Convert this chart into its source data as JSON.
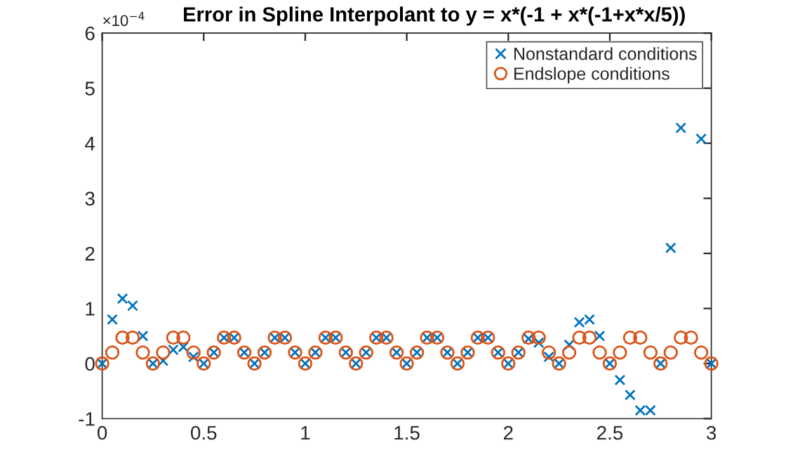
{
  "chart_data": {
    "type": "scatter",
    "title": "Error in Spline Interpolant to y = x*(-1 + x*(-1+x*x/5))",
    "annotations": [
      "×10$^{−4}$"
    ],
    "x": [
      0,
      0.05,
      0.1,
      0.15,
      0.2,
      0.25,
      0.3,
      0.35,
      0.4,
      0.45,
      0.5,
      0.55,
      0.6,
      0.65,
      0.7,
      0.75,
      0.8,
      0.85,
      0.9,
      0.95,
      1,
      1.05,
      1.1,
      1.15,
      1.2,
      1.25,
      1.3,
      1.35,
      1.4,
      1.45,
      1.5,
      1.55,
      1.6,
      1.65,
      1.7,
      1.75,
      1.8,
      1.85,
      1.9,
      1.95,
      2,
      2.05,
      2.1,
      2.15,
      2.2,
      2.25,
      2.3,
      2.35,
      2.4,
      2.45,
      2.5,
      2.55,
      2.6,
      2.65,
      2.7,
      2.75,
      2.8,
      2.85,
      2.9,
      2.95,
      3
    ],
    "series": [
      {
        "name": "Nonstandard conditions",
        "color": "#0072bd",
        "marker": "cross",
        "values": [
          0,
          0.8,
          1.18,
          1.05,
          0.5,
          0,
          0.05,
          0.25,
          0.3,
          0.12,
          0,
          0.2,
          0.47,
          0.47,
          0.2,
          0,
          0.2,
          0.47,
          0.47,
          0.2,
          0,
          0.2,
          0.47,
          0.47,
          0.2,
          0,
          0.2,
          0.47,
          0.47,
          0.2,
          0,
          0.2,
          0.47,
          0.47,
          0.2,
          0,
          0.2,
          0.47,
          0.47,
          0.2,
          0,
          0.2,
          0.45,
          0.38,
          0.12,
          0,
          0.34,
          0.75,
          0.8,
          0.5,
          0,
          -0.3,
          -0.57,
          -0.85,
          -0.85,
          0,
          2.1,
          4.28,
          null,
          4.08,
          0
        ]
      },
      {
        "name": "Endslope conditions",
        "color": "#d95319",
        "marker": "circle",
        "values": [
          0,
          0.2,
          0.47,
          0.47,
          0.2,
          0,
          0.2,
          0.47,
          0.47,
          0.2,
          0,
          0.2,
          0.47,
          0.47,
          0.2,
          0,
          0.2,
          0.47,
          0.47,
          0.2,
          0,
          0.2,
          0.47,
          0.47,
          0.2,
          0,
          0.2,
          0.47,
          0.47,
          0.2,
          0,
          0.2,
          0.47,
          0.47,
          0.2,
          0,
          0.2,
          0.47,
          0.47,
          0.2,
          0,
          0.2,
          0.47,
          0.47,
          0.2,
          0,
          0.2,
          0.47,
          0.47,
          0.2,
          0,
          0.2,
          0.47,
          0.47,
          0.2,
          0,
          0.2,
          0.47,
          0.47,
          0.2,
          0
        ]
      }
    ],
    "xlim": [
      0,
      3
    ],
    "xticks": [
      0,
      0.5,
      1,
      1.5,
      2,
      2.5,
      3
    ],
    "ylim": [
      -1,
      6
    ],
    "yticks": [
      -1,
      0,
      1,
      2,
      3,
      4,
      5,
      6
    ],
    "legend": "top right",
    "grid": false
  }
}
